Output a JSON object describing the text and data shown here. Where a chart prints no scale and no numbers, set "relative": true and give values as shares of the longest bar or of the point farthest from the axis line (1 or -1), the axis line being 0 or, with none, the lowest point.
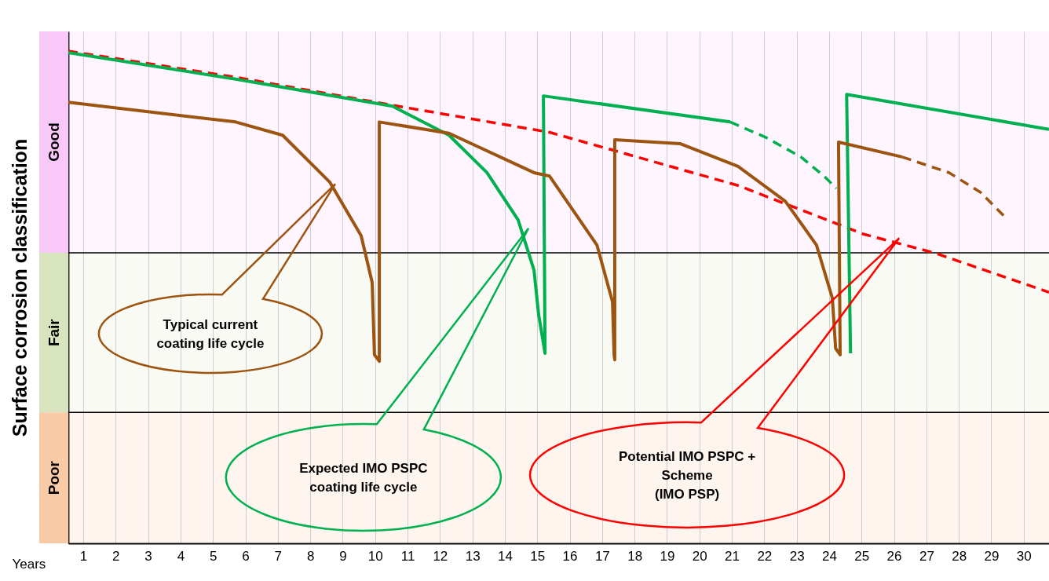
{
  "chart_data": {
    "type": "line",
    "relative": true,
    "xlabel": "Years",
    "ylabel": "Surface corrosion classification",
    "xlim": [
      0.54,
      30.78
    ],
    "xticks": [
      1,
      2,
      3,
      4,
      5,
      6,
      7,
      8,
      9,
      10,
      11,
      12,
      13,
      14,
      15,
      16,
      17,
      18,
      19,
      20,
      21,
      22,
      23,
      24,
      25,
      26,
      27,
      28,
      29,
      30
    ],
    "grid": "x",
    "marker": "none",
    "series": [
      {
        "color": "#ff0000",
        "line_style": "dashed",
        "x": [
          0.54,
          5.7,
          10.54,
          15.38,
          21.19,
          25.07,
          27.25,
          30.78
        ],
        "values": [
          1.0,
          0.947,
          0.89,
          0.835,
          0.727,
          0.628,
          0.59,
          0.51
        ]
      },
      {
        "color": "#00b050",
        "line_style": "solid",
        "x": [
          0.54,
          5.7,
          10.54,
          12.28,
          13.45,
          14.41,
          14.9,
          15.04,
          15.24,
          15.19,
          20.95
        ],
        "values": [
          0.997,
          0.943,
          0.888,
          0.829,
          0.753,
          0.657,
          0.555,
          0.466,
          0.386,
          0.909,
          0.856
        ]
      },
      {
        "color": "#00b050",
        "line_style": "dashed",
        "x": [
          20.95,
          22.04,
          23.13,
          23.86,
          24.22
        ],
        "values": [
          0.856,
          0.825,
          0.785,
          0.745,
          0.721
        ]
      },
      {
        "color": "#00b050",
        "line_style": "solid",
        "x": [
          24.66,
          24.54,
          30.78
        ],
        "values": [
          0.386,
          0.912,
          0.841
        ]
      },
      {
        "color": "#9c5410",
        "line_style": "solid",
        "x": [
          0.54,
          5.7,
          7.15,
          8.6,
          9.57,
          9.91,
          9.98,
          10.13,
          10.13,
          12.28,
          14.9,
          15.38,
          16.84,
          17.32,
          17.37,
          17.39,
          17.39,
          19.4,
          21.19,
          22.65,
          23.61,
          24.1,
          24.2,
          24.34,
          24.29,
          26.25
        ],
        "values": [
          0.896,
          0.856,
          0.829,
          0.734,
          0.625,
          0.53,
          0.383,
          0.37,
          0.856,
          0.833,
          0.753,
          0.746,
          0.606,
          0.491,
          0.383,
          0.373,
          0.82,
          0.812,
          0.766,
          0.695,
          0.606,
          0.498,
          0.396,
          0.383,
          0.815,
          0.785
        ]
      },
      {
        "color": "#9c5410",
        "line_style": "dashed",
        "x": [
          26.25,
          27.7,
          28.67,
          29.39
        ],
        "values": [
          0.785,
          0.753,
          0.713,
          0.665
        ]
      }
    ],
    "bands": [
      {
        "axis": "y",
        "from": 0.59,
        "to": 1.04,
        "label": "Good",
        "color": "#f8c8f8"
      },
      {
        "axis": "y",
        "from": 0.266,
        "to": 0.59,
        "label": "Fair",
        "color": "#d7e4bd"
      },
      {
        "axis": "y",
        "from": 0,
        "to": 0.266,
        "label": "Poor",
        "color": "#f9caa6"
      }
    ],
    "ref_lines": [
      {
        "axis": "y",
        "value": 0.59
      },
      {
        "axis": "y",
        "value": 0.266
      }
    ],
    "annotations": [
      "Typical current\ncoating life cycle",
      "Expected IMO PSPC\ncoating life cycle",
      "Potential IMO PSPC +\nScheme\n(IMO PSP)"
    ]
  }
}
